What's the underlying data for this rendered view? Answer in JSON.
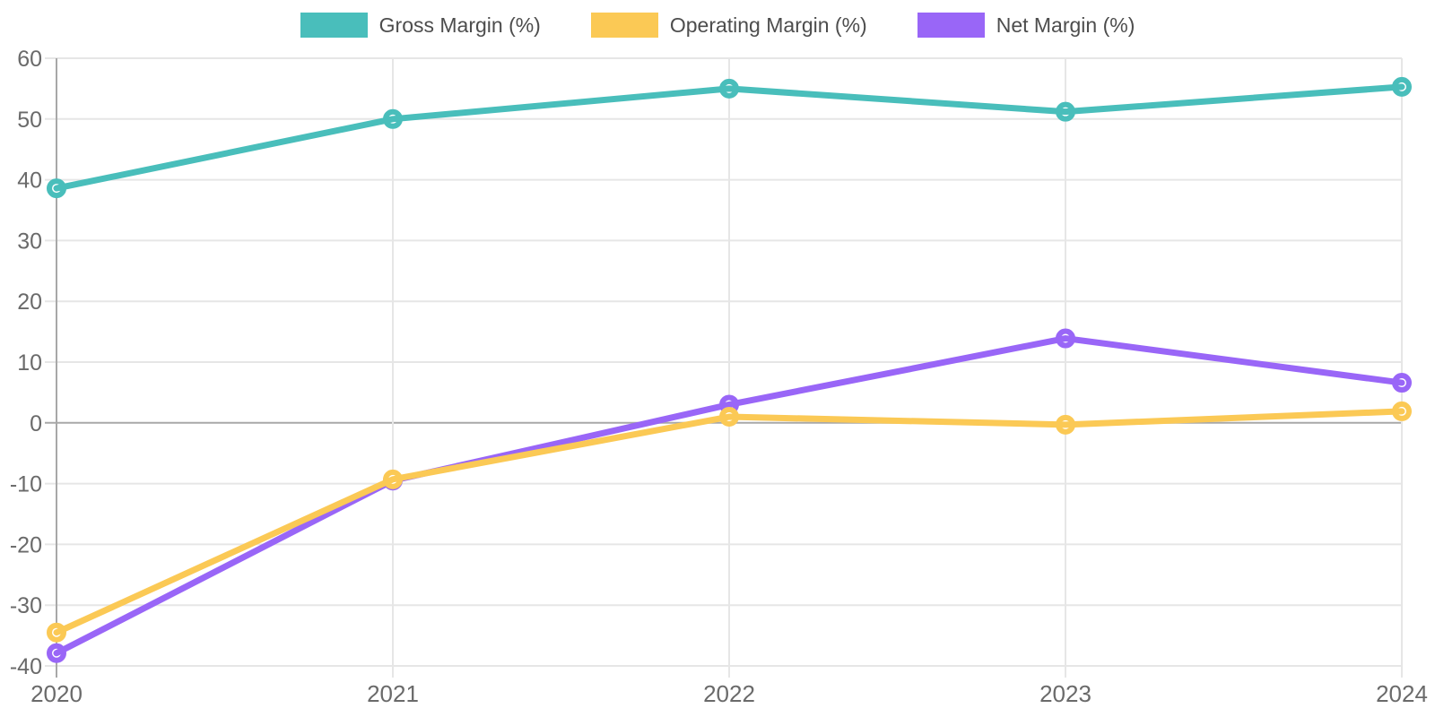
{
  "chart_data": {
    "type": "line",
    "title": "",
    "xlabel": "",
    "ylabel": "",
    "x_categories": [
      "2020",
      "2021",
      "2022",
      "2023",
      "2024"
    ],
    "series": [
      {
        "name": "Gross Margin (%)",
        "color": "#49BEBB",
        "values": [
          38.6,
          50.0,
          55.0,
          51.2,
          55.3
        ]
      },
      {
        "name": "Operating Margin (%)",
        "color": "#FBC955",
        "values": [
          -34.5,
          -9.3,
          1.0,
          -0.3,
          1.9
        ]
      },
      {
        "name": "Net Margin (%)",
        "color": "#9966F7",
        "values": [
          -37.9,
          -9.5,
          3.0,
          13.9,
          6.6
        ]
      }
    ],
    "ylim": [
      -40,
      60
    ],
    "ytick_step": 10,
    "y_tick_labels": [
      "60",
      "50",
      "40",
      "30",
      "20",
      "10",
      "0",
      "-10",
      "-20",
      "-30",
      "-40"
    ],
    "grid": true,
    "legend_position": "top",
    "marker_style": "ring",
    "colors": {
      "background": "#ffffff",
      "grid": "#e6e6e6",
      "axis": "#a8a8a8",
      "zero_line": "#a8a8a8",
      "tick_text": "#6a6a6a",
      "legend_text": "#4d4d4d",
      "marker_fill": "#ffffff"
    }
  }
}
